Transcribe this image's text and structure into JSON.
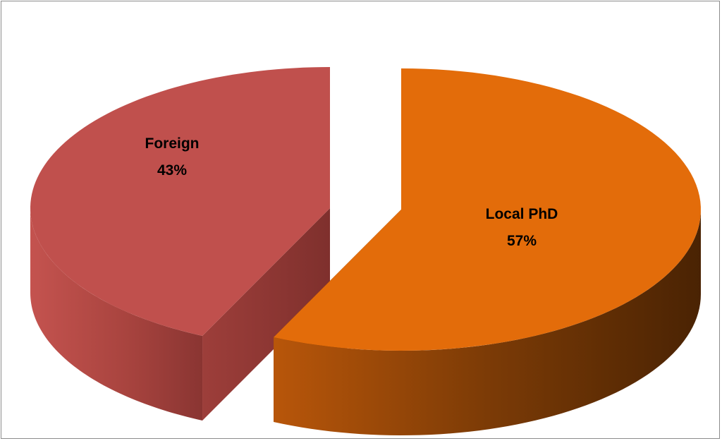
{
  "chart_data": {
    "type": "pie",
    "style": "3d-exploded",
    "slices": [
      {
        "label": "Foreign",
        "value": 43,
        "value_label": "43%",
        "color": "#c0504d"
      },
      {
        "label": "Local PhD",
        "value": 57,
        "value_label": "57%",
        "color": "#e36c0a"
      }
    ],
    "legend": "none"
  }
}
